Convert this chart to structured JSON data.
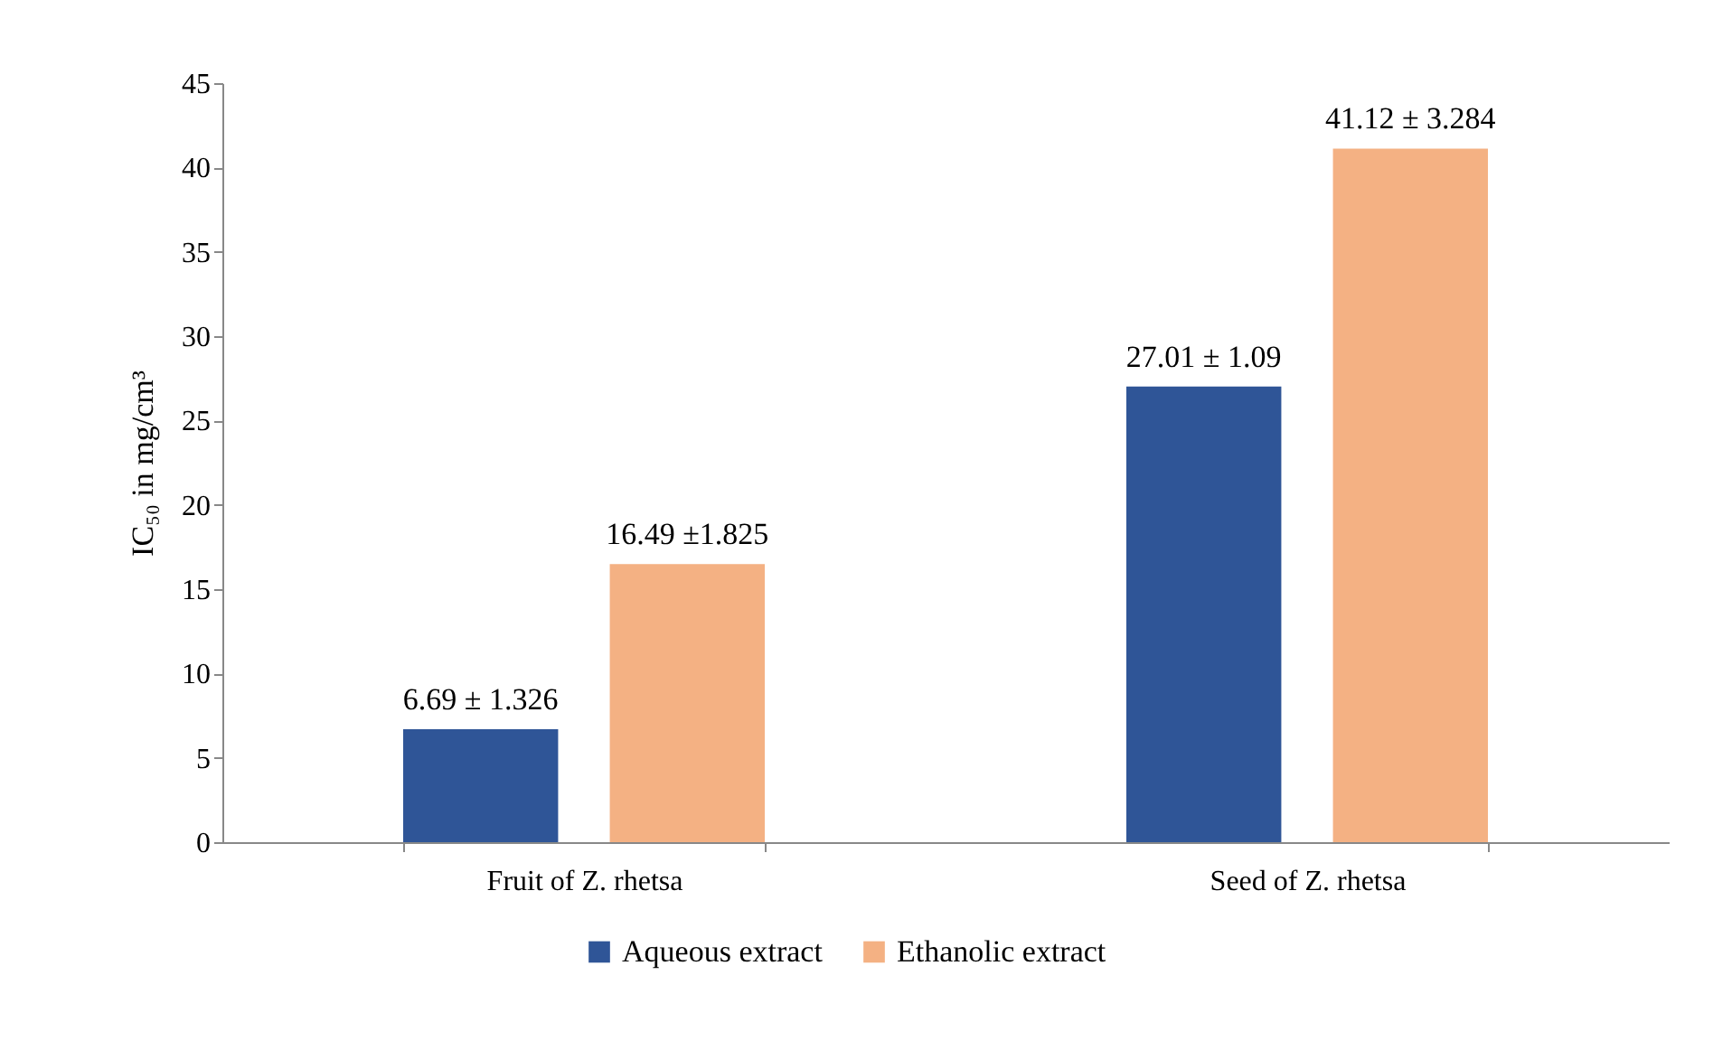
{
  "chart_data": {
    "type": "bar",
    "ylabel": "IC₅₀ in mg/cm³",
    "categories": [
      "Fruit of Z. rhetsa",
      "Seed of Z. rhetsa"
    ],
    "series": [
      {
        "name": "Aqueous extract",
        "color": "#2f5597",
        "values": [
          6.69,
          27.01
        ],
        "value_labels": [
          "6.69 ± 1.326",
          "27.01 ± 1.09"
        ]
      },
      {
        "name": "Ethanolic extract",
        "color": "#f4b183",
        "values": [
          16.49,
          41.12
        ],
        "value_labels": [
          "16.49 ±1.825",
          "41.12 ± 3.284"
        ]
      }
    ],
    "ylim": [
      0,
      45
    ],
    "yticks": [
      0,
      5,
      10,
      15,
      20,
      25,
      30,
      35,
      40,
      45
    ],
    "grid": false,
    "legend": "bottom"
  }
}
